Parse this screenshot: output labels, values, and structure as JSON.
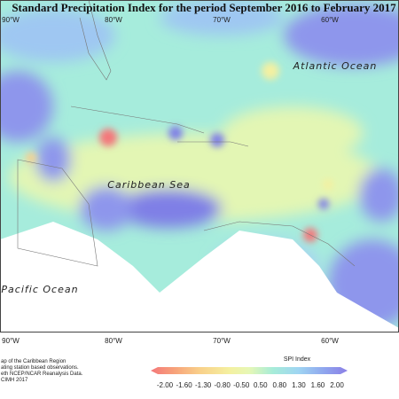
{
  "title": "Standard Precipitation Index for the period September 2016 to February 2017",
  "map_labels": {
    "atlantic": "Atlantic Ocean",
    "caribbean": "Caribbean Sea",
    "pacific": "Pacific Ocean"
  },
  "longitudes_top": [
    "90°W",
    "80°W",
    "70°W",
    "60°W"
  ],
  "longitudes_bottom": [
    "90°W",
    "80°W",
    "70°W",
    "60°W"
  ],
  "credits": [
    "ap of the Caribbean Region",
    "ating station based observations.",
    "eth NCEP/NCAR Reanalysis Data.",
    "CIMH 2017"
  ],
  "legend": {
    "title": "SPI Index",
    "ticks": [
      "-2.00",
      "-1.60",
      "-1.30",
      "-0.80",
      "-0.50",
      "0.50",
      "0.80",
      "1.30",
      "1.60",
      "2.00"
    ]
  }
}
